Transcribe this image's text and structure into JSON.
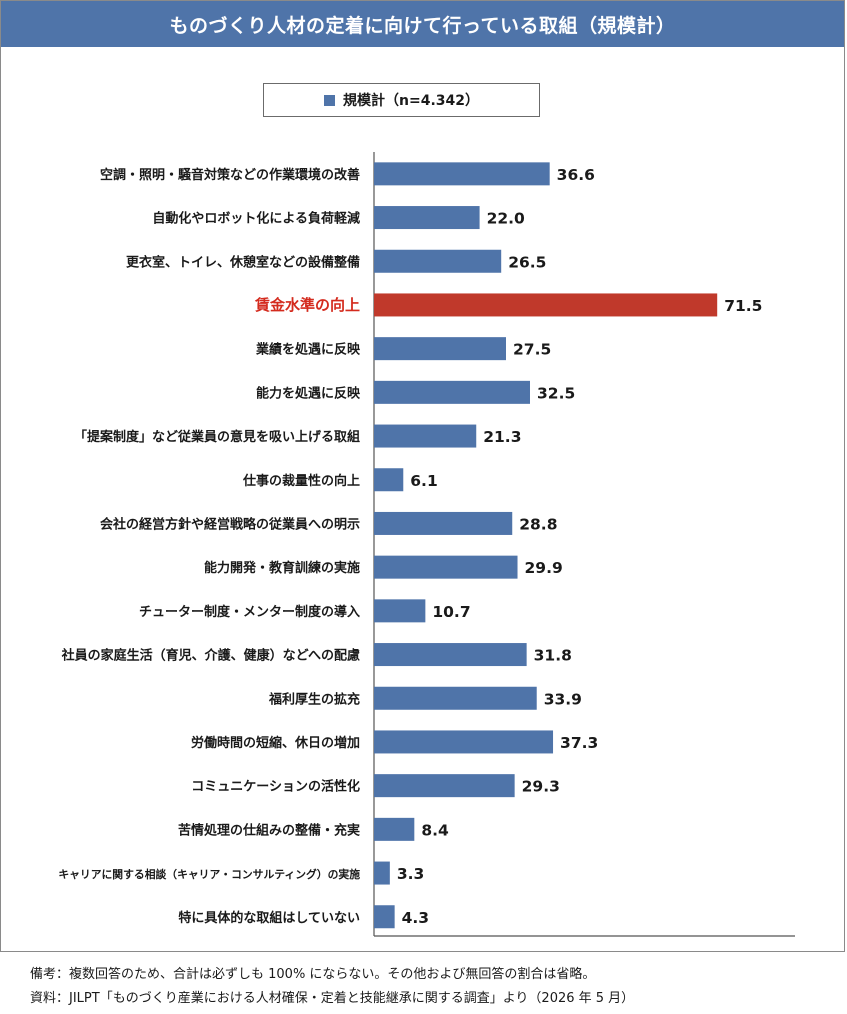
{
  "title": "ものづくり人材の定着に向けて行っている取組（規模計）",
  "legend": {
    "label": "規模計（n=4.342）",
    "color": "#4f74a9"
  },
  "colors": {
    "bar": "#4f74a9",
    "highlight_bar": "#c0392b",
    "highlight_text": "#d42b1e",
    "title_bg": "#4f74a9"
  },
  "chart_data": {
    "type": "bar",
    "orientation": "horizontal",
    "categories": [
      "空調・照明・騒音対策などの作業環境の改善",
      "自動化やロボット化による負荷軽減",
      "更衣室、トイレ、休憩室などの設備整備",
      "賃金水準の向上",
      "業績を処遇に反映",
      "能力を処遇に反映",
      "「提案制度」など従業員の意見を吸い上げる取組",
      "仕事の裁量性の向上",
      "会社の経営方針や経営戦略の従業員への明示",
      "能力開発・教育訓練の実施",
      "チューター制度・メンター制度の導入",
      "社員の家庭生活（育児、介護、健康）などへの配慮",
      "福利厚生の拡充",
      "労働時間の短縮、休日の増加",
      "コミュニケーションの活性化",
      "苦情処理の仕組みの整備・充実",
      "キャリアに関する相談（キャリア・コンサルティング）の実施",
      "特に具体的な取組はしていない"
    ],
    "series": [
      {
        "name": "規模計（n=4.342）",
        "values": [
          36.6,
          22.0,
          26.5,
          71.5,
          27.5,
          32.5,
          21.3,
          6.1,
          28.8,
          29.9,
          10.7,
          31.8,
          33.9,
          37.3,
          29.3,
          8.4,
          3.3,
          4.3
        ]
      }
    ],
    "value_labels": [
      "36.6",
      "22.0",
      "26.5",
      "71.5",
      "27.5",
      "32.5",
      "21.3",
      "6.1",
      "28.8",
      "29.9",
      "10.7",
      "31.8",
      "33.9",
      "37.3",
      "29.3",
      "8.4",
      "3.3",
      "4.3"
    ],
    "highlight_category": "賃金水準の向上",
    "xlim": [
      0,
      100
    ],
    "grid": false,
    "legend_position": "top"
  },
  "notes": {
    "note": "備考：複数回答のため、合計は必ずしも 100% にならない。その他および無回答の割合は省略。",
    "source": "資料：JILPT「ものづくり産業における人材確保・定着と技能継承に関する調査」より（2026 年 5 月）"
  }
}
